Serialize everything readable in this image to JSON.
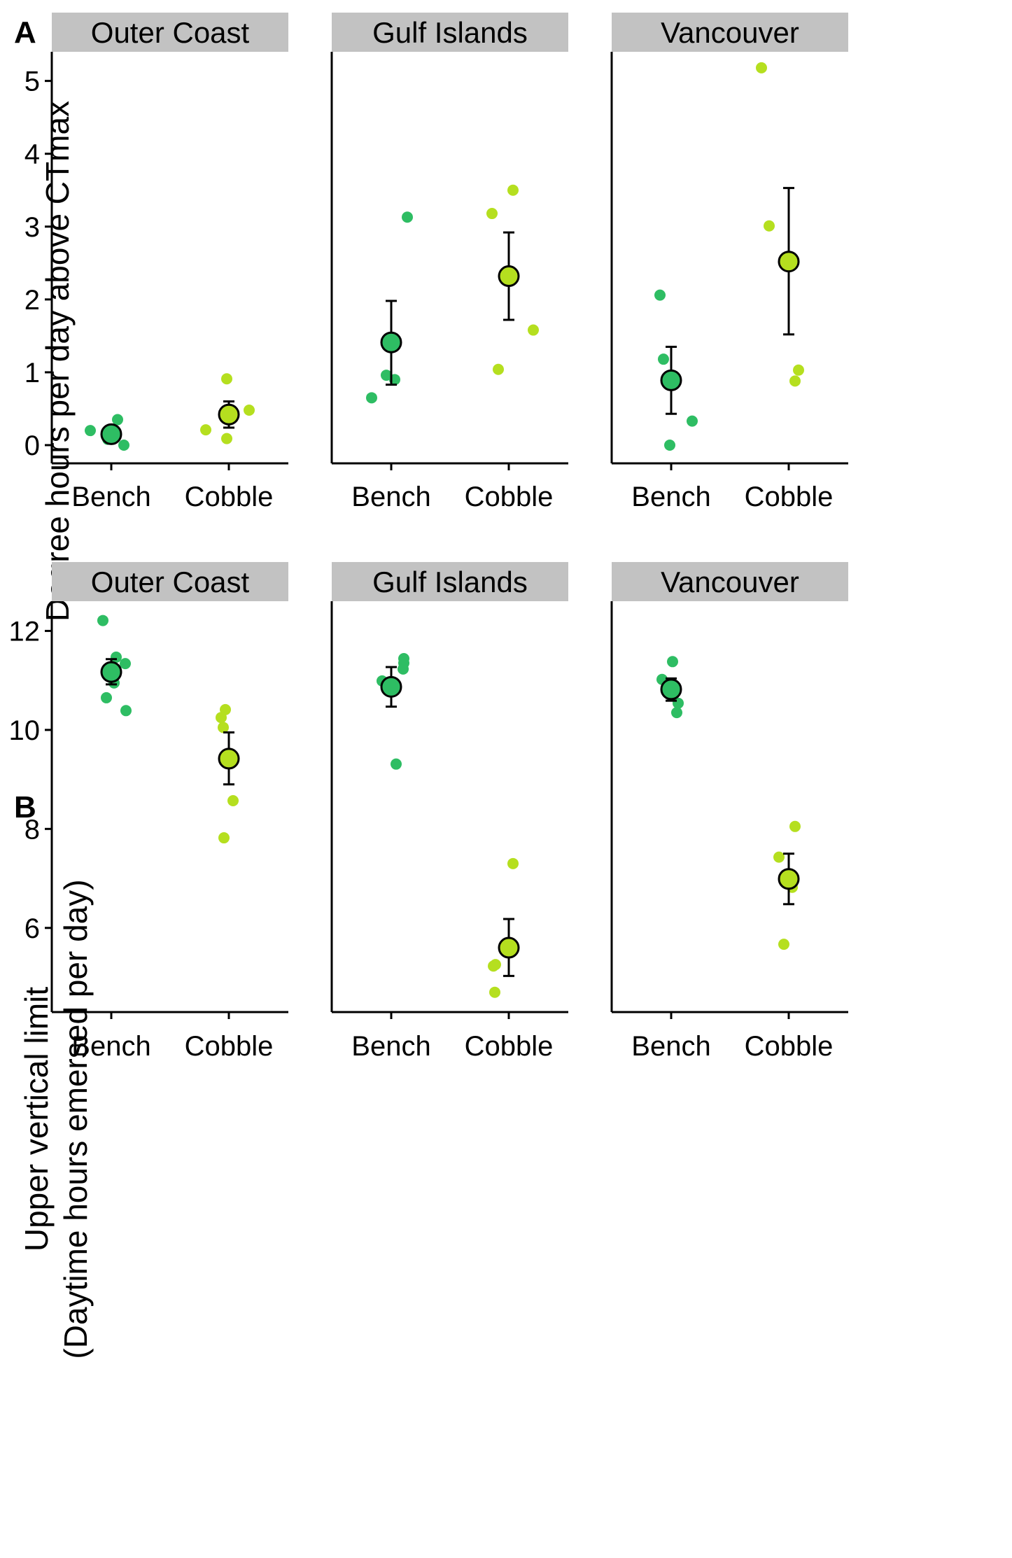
{
  "colors": {
    "Bench": "#2ebd63",
    "Cobble": "#b5df1f",
    "strip_fill": "#c2c2c2"
  },
  "chart_data": [
    {
      "type": "scatter",
      "panel_label": "A",
      "ylabel_lines": [
        "Degree hours per day above CTmax"
      ],
      "facets": [
        "Outer Coast",
        "Gulf Islands",
        "Vancouver"
      ],
      "categories": [
        "Bench",
        "Cobble"
      ],
      "ylim": [
        -0.25,
        5.4
      ],
      "yticks": [
        0,
        1,
        2,
        3,
        4,
        5
      ],
      "points": {
        "Outer Coast": {
          "Bench": [
            [
              -0.3,
              0.2
            ],
            [
              -0.05,
              0.08
            ],
            [
              0.09,
              0.35
            ],
            [
              0.18,
              0.0
            ]
          ],
          "Cobble": [
            [
              -0.33,
              0.21
            ],
            [
              -0.03,
              0.09
            ],
            [
              -0.03,
              0.91
            ],
            [
              0.29,
              0.48
            ]
          ]
        },
        "Gulf Islands": {
          "Bench": [
            [
              -0.28,
              0.65
            ],
            [
              -0.07,
              0.96
            ],
            [
              0.05,
              0.9
            ],
            [
              0.23,
              3.13
            ]
          ],
          "Cobble": [
            [
              -0.24,
              3.18
            ],
            [
              -0.15,
              1.04
            ],
            [
              0.06,
              3.5
            ],
            [
              0.35,
              1.58
            ]
          ]
        },
        "Vancouver": {
          "Bench": [
            [
              -0.16,
              2.06
            ],
            [
              -0.11,
              1.18
            ],
            [
              -0.02,
              0.0
            ],
            [
              0.3,
              0.33
            ]
          ],
          "Cobble": [
            [
              -0.39,
              5.18
            ],
            [
              -0.28,
              3.01
            ],
            [
              0.09,
              0.88
            ],
            [
              0.14,
              1.03
            ]
          ]
        }
      },
      "summary": {
        "Outer Coast": {
          "Bench": {
            "mean": 0.15,
            "lo": 0.15,
            "hi": 0.15
          },
          "Cobble": {
            "mean": 0.42,
            "lo": 0.24,
            "hi": 0.6
          }
        },
        "Gulf Islands": {
          "Bench": {
            "mean": 1.41,
            "lo": 0.83,
            "hi": 1.98
          },
          "Cobble": {
            "mean": 2.32,
            "lo": 1.72,
            "hi": 2.92
          }
        },
        "Vancouver": {
          "Bench": {
            "mean": 0.89,
            "lo": 0.43,
            "hi": 1.35
          },
          "Cobble": {
            "mean": 2.52,
            "lo": 1.52,
            "hi": 3.53
          }
        }
      }
    },
    {
      "type": "scatter",
      "panel_label": "B",
      "ylabel_lines": [
        "Upper vertical limit",
        "(Daytime hours emersed per day)"
      ],
      "facets": [
        "Outer Coast",
        "Gulf Islands",
        "Vancouver"
      ],
      "categories": [
        "Bench",
        "Cobble"
      ],
      "ylim": [
        4.3,
        12.6
      ],
      "yticks": [
        6,
        8,
        10,
        12
      ],
      "points": {
        "Outer Coast": {
          "Bench": [
            [
              -0.12,
              12.21
            ],
            [
              -0.07,
              10.65
            ],
            [
              0.04,
              10.95
            ],
            [
              0.07,
              11.47
            ],
            [
              0.2,
              11.34
            ],
            [
              0.21,
              10.39
            ]
          ],
          "Cobble": [
            [
              -0.11,
              10.25
            ],
            [
              -0.08,
              10.05
            ],
            [
              -0.07,
              7.82
            ],
            [
              -0.05,
              10.41
            ],
            [
              0.06,
              8.57
            ]
          ]
        },
        "Gulf Islands": {
          "Bench": [
            [
              -0.13,
              10.99
            ],
            [
              0.07,
              9.31
            ],
            [
              0.17,
              11.23
            ],
            [
              0.18,
              11.35
            ],
            [
              0.18,
              11.44
            ]
          ],
          "Cobble": [
            [
              -0.2,
              4.7
            ],
            [
              -0.22,
              5.23
            ],
            [
              -0.19,
              5.26
            ],
            [
              0.06,
              7.3
            ]
          ]
        },
        "Vancouver": {
          "Bench": [
            [
              -0.13,
              11.02
            ],
            [
              0.02,
              11.38
            ],
            [
              0.08,
              10.35
            ],
            [
              0.1,
              10.54
            ]
          ],
          "Cobble": [
            [
              -0.14,
              7.43
            ],
            [
              -0.07,
              5.67
            ],
            [
              0.05,
              6.82
            ],
            [
              0.09,
              8.05
            ]
          ]
        }
      },
      "summary": {
        "Outer Coast": {
          "Bench": {
            "mean": 11.17,
            "lo": 10.92,
            "hi": 11.43
          },
          "Cobble": {
            "mean": 9.42,
            "lo": 8.9,
            "hi": 9.95
          }
        },
        "Gulf Islands": {
          "Bench": {
            "mean": 10.87,
            "lo": 10.47,
            "hi": 11.27
          },
          "Cobble": {
            "mean": 5.6,
            "lo": 5.03,
            "hi": 6.18
          }
        },
        "Vancouver": {
          "Bench": {
            "mean": 10.82,
            "lo": 10.59,
            "hi": 11.04
          },
          "Cobble": {
            "mean": 6.99,
            "lo": 6.48,
            "hi": 7.5
          }
        }
      }
    }
  ]
}
